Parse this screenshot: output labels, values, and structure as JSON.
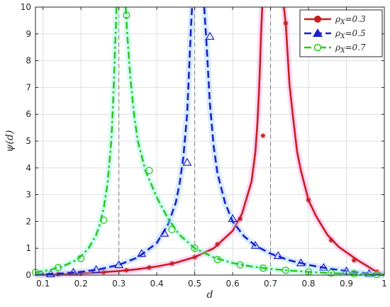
{
  "chart_data": {
    "type": "line",
    "xlabel": "d",
    "ylabel": "ψ(d)",
    "xlim": [
      0.08,
      1.0
    ],
    "ylim": [
      0,
      10
    ],
    "x_ticks": [
      0.1,
      0.2,
      0.3,
      0.4,
      0.5,
      0.6,
      0.7,
      0.8,
      0.9,
      1
    ],
    "x_tick_labels": [
      "0.1",
      "0.2",
      "0.3",
      "0.4",
      "0.5",
      "0.6",
      "0.7",
      "0.8",
      "0.9",
      "1"
    ],
    "y_ticks": [
      0,
      1,
      2,
      3,
      4,
      5,
      6,
      7,
      8,
      9,
      10
    ],
    "y_tick_labels": [
      "0",
      "1",
      "2",
      "3",
      "4",
      "5",
      "6",
      "7",
      "8",
      "9",
      "10"
    ],
    "grid": true,
    "legend_position": "top-right",
    "vertical_dashed_lines": [
      0.3,
      0.5,
      0.7
    ],
    "series": [
      {
        "name": "ρX=0.3",
        "legend_label": {
          "prefix": "ρ",
          "sub": "X",
          "suffix": "=0.3"
        },
        "rho": 0.3,
        "color": "#c81e1e",
        "halo": "#ff8ce6",
        "line_style": "solid",
        "marker": "circle",
        "points": [
          [
            0.08,
            0.01
          ],
          [
            0.15,
            0.03
          ],
          [
            0.2,
            0.06
          ],
          [
            0.25,
            0.1
          ],
          [
            0.3,
            0.15
          ],
          [
            0.35,
            0.22
          ],
          [
            0.4,
            0.32
          ],
          [
            0.45,
            0.46
          ],
          [
            0.5,
            0.67
          ],
          [
            0.55,
            1.0
          ],
          [
            0.6,
            1.65
          ],
          [
            0.625,
            2.3
          ],
          [
            0.65,
            3.5
          ],
          [
            0.66,
            4.6
          ],
          [
            0.665,
            5.6
          ],
          [
            0.67,
            7.0
          ],
          [
            0.675,
            9.0
          ],
          [
            0.678,
            10.0
          ],
          [
            0.735,
            10.0
          ],
          [
            0.74,
            9.4
          ],
          [
            0.75,
            7.1
          ],
          [
            0.76,
            5.8
          ],
          [
            0.77,
            4.6
          ],
          [
            0.78,
            3.9
          ],
          [
            0.8,
            2.8
          ],
          [
            0.82,
            2.2
          ],
          [
            0.85,
            1.5
          ],
          [
            0.88,
            1.05
          ],
          [
            0.9,
            0.85
          ],
          [
            0.93,
            0.55
          ],
          [
            0.95,
            0.38
          ],
          [
            0.97,
            0.2
          ],
          [
            1.0,
            0.0
          ]
        ],
        "markers_x": [
          0.14,
          0.2,
          0.26,
          0.32,
          0.38,
          0.44,
          0.5,
          0.56,
          0.62,
          0.68,
          0.74,
          0.8,
          0.86,
          0.92,
          0.98
        ],
        "markers_y": [
          0.03,
          0.06,
          0.11,
          0.18,
          0.28,
          0.43,
          0.67,
          1.15,
          2.1,
          5.2,
          9.4,
          2.8,
          1.3,
          0.55,
          0.12
        ]
      },
      {
        "name": "ρX=0.5",
        "legend_label": {
          "prefix": "ρ",
          "sub": "X",
          "suffix": "=0.5"
        },
        "rho": 0.5,
        "color": "#1e1ecc",
        "halo": "#8cc8ff",
        "line_style": "dashed",
        "marker": "triangle",
        "points": [
          [
            0.08,
            0.02
          ],
          [
            0.15,
            0.06
          ],
          [
            0.2,
            0.12
          ],
          [
            0.25,
            0.22
          ],
          [
            0.3,
            0.38
          ],
          [
            0.35,
            0.66
          ],
          [
            0.4,
            1.2
          ],
          [
            0.43,
            1.9
          ],
          [
            0.45,
            2.7
          ],
          [
            0.46,
            3.4
          ],
          [
            0.47,
            4.4
          ],
          [
            0.48,
            6.0
          ],
          [
            0.485,
            7.6
          ],
          [
            0.49,
            9.2
          ],
          [
            0.493,
            10.0
          ],
          [
            0.525,
            10.0
          ],
          [
            0.53,
            8.9
          ],
          [
            0.54,
            6.4
          ],
          [
            0.55,
            4.8
          ],
          [
            0.56,
            3.8
          ],
          [
            0.58,
            2.7
          ],
          [
            0.6,
            2.0
          ],
          [
            0.63,
            1.45
          ],
          [
            0.66,
            1.1
          ],
          [
            0.7,
            0.8
          ],
          [
            0.75,
            0.55
          ],
          [
            0.8,
            0.38
          ],
          [
            0.85,
            0.25
          ],
          [
            0.9,
            0.15
          ],
          [
            0.95,
            0.07
          ],
          [
            1.0,
            0.0
          ]
        ],
        "markers_x": [
          0.12,
          0.18,
          0.24,
          0.3,
          0.36,
          0.42,
          0.48,
          0.54,
          0.6,
          0.66,
          0.72,
          0.78,
          0.84,
          0.9,
          0.96
        ],
        "markers_y": [
          0.04,
          0.1,
          0.2,
          0.38,
          0.8,
          1.55,
          4.2,
          8.9,
          2.1,
          1.1,
          0.72,
          0.45,
          0.28,
          0.15,
          0.05
        ]
      },
      {
        "name": "ρX=0.7",
        "legend_label": {
          "prefix": "ρ",
          "sub": "X",
          "suffix": "=0.7"
        },
        "rho": 0.7,
        "color": "#2ec81e",
        "halo": "#8cffe6",
        "line_style": "dash-dot",
        "marker": "circle-open",
        "points": [
          [
            0.08,
            0.1
          ],
          [
            0.12,
            0.2
          ],
          [
            0.15,
            0.32
          ],
          [
            0.18,
            0.5
          ],
          [
            0.2,
            0.7
          ],
          [
            0.22,
            1.0
          ],
          [
            0.24,
            1.5
          ],
          [
            0.25,
            1.9
          ],
          [
            0.26,
            2.5
          ],
          [
            0.27,
            3.4
          ],
          [
            0.28,
            5.0
          ],
          [
            0.285,
            6.5
          ],
          [
            0.29,
            8.5
          ],
          [
            0.294,
            10.0
          ],
          [
            0.318,
            10.0
          ],
          [
            0.322,
            9.0
          ],
          [
            0.33,
            7.4
          ],
          [
            0.34,
            6.0
          ],
          [
            0.35,
            5.0
          ],
          [
            0.37,
            3.9
          ],
          [
            0.4,
            2.9
          ],
          [
            0.43,
            2.1
          ],
          [
            0.46,
            1.5
          ],
          [
            0.5,
            1.0
          ],
          [
            0.55,
            0.66
          ],
          [
            0.6,
            0.45
          ],
          [
            0.65,
            0.32
          ],
          [
            0.7,
            0.23
          ],
          [
            0.75,
            0.17
          ],
          [
            0.8,
            0.12
          ],
          [
            0.85,
            0.08
          ],
          [
            0.9,
            0.05
          ],
          [
            0.95,
            0.025
          ],
          [
            1.0,
            0.0
          ]
        ],
        "markers_x": [
          0.08,
          0.14,
          0.2,
          0.26,
          0.32,
          0.38,
          0.44,
          0.5,
          0.56,
          0.62,
          0.68,
          0.74,
          0.8,
          0.86,
          0.92,
          0.98
        ],
        "markers_y": [
          0.1,
          0.28,
          0.62,
          2.05,
          9.7,
          3.9,
          1.7,
          1.0,
          0.58,
          0.38,
          0.26,
          0.18,
          0.12,
          0.08,
          0.05,
          0.02
        ]
      }
    ]
  }
}
